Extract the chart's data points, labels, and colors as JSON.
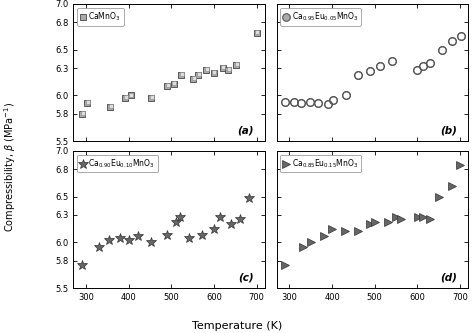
{
  "panel_a": {
    "label": "CaMnO$_3$",
    "marker": "s",
    "x": [
      290,
      302,
      355,
      392,
      404,
      452,
      490,
      505,
      523,
      551,
      562,
      581,
      599,
      620,
      632,
      651,
      700
    ],
    "y": [
      5.8,
      5.92,
      5.87,
      5.97,
      6.0,
      5.97,
      6.1,
      6.13,
      6.22,
      6.18,
      6.22,
      6.28,
      6.25,
      6.3,
      6.28,
      6.33,
      6.68
    ],
    "panel_label": "(a)"
  },
  "panel_b": {
    "label": "Ca$_{0.95}$Eu$_{0.05}$MnO$_3$",
    "marker": "o",
    "x": [
      290,
      310,
      328,
      348,
      368,
      390,
      403,
      432,
      461,
      490,
      513,
      541,
      600,
      613,
      631,
      659,
      681,
      702
    ],
    "y": [
      5.93,
      5.93,
      5.92,
      5.93,
      5.92,
      5.91,
      5.95,
      6.0,
      6.22,
      6.27,
      6.32,
      6.38,
      6.28,
      6.32,
      6.35,
      6.5,
      6.6,
      6.65
    ],
    "panel_label": "(b)"
  },
  "panel_c": {
    "label": "Ca$_{0.90}$Eu$_{0.10}$MnO$_3$",
    "marker": "*",
    "x": [
      290,
      330,
      353,
      379,
      401,
      421,
      451,
      490,
      511,
      521,
      541,
      571,
      601,
      613,
      641,
      661,
      682
    ],
    "y": [
      5.75,
      5.95,
      6.02,
      6.05,
      6.02,
      6.07,
      6.0,
      6.08,
      6.22,
      6.28,
      6.05,
      6.08,
      6.15,
      6.28,
      6.2,
      6.25,
      6.48
    ],
    "panel_label": "(c)"
  },
  "panel_d": {
    "label": "Ca$_{0.85}$Eu$_{0.15}$MnO$_3$",
    "marker": ">",
    "x": [
      290,
      331,
      351,
      381,
      401,
      431,
      461,
      490,
      501,
      531,
      551,
      562,
      601,
      613,
      631,
      651,
      681,
      701
    ],
    "y": [
      5.75,
      5.95,
      6.0,
      6.07,
      6.15,
      6.12,
      6.12,
      6.2,
      6.22,
      6.22,
      6.28,
      6.25,
      6.28,
      6.28,
      6.25,
      6.5,
      6.62,
      6.85
    ],
    "panel_label": "(d)"
  },
  "xlabel": "Temperature (K)",
  "ylabel": "Compressibility, $\\beta$ (MPa$^{-1}$)",
  "xlim": [
    270,
    720
  ],
  "ylim": [
    5.5,
    7.0
  ],
  "xticks": [
    300,
    400,
    500,
    600,
    700
  ],
  "yticks": [
    5.5,
    5.8,
    6.0,
    6.3,
    6.5,
    6.8,
    7.0
  ],
  "bg_color": "white"
}
